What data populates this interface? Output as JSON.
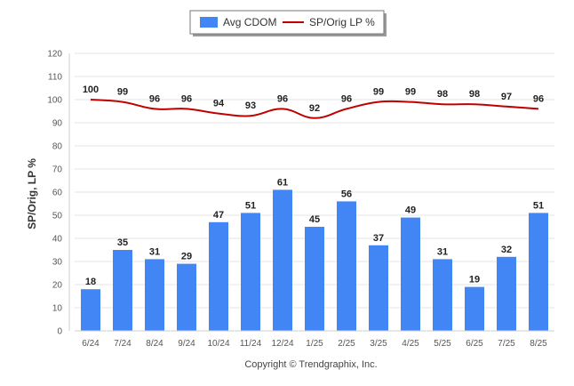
{
  "chart_data": {
    "type": "bar",
    "categories": [
      "6/24",
      "7/24",
      "8/24",
      "9/24",
      "10/24",
      "11/24",
      "12/24",
      "1/25",
      "2/25",
      "3/25",
      "4/25",
      "5/25",
      "6/25",
      "7/25",
      "8/25"
    ],
    "series": [
      {
        "name": "Avg CDOM",
        "type": "bar",
        "color": "#4285f4",
        "values": [
          18,
          35,
          31,
          29,
          47,
          51,
          61,
          45,
          56,
          37,
          49,
          31,
          19,
          32,
          51
        ]
      },
      {
        "name": "SP/Orig LP %",
        "type": "line",
        "color": "#c00000",
        "values": [
          100,
          99,
          96,
          96,
          94,
          93,
          96,
          92,
          96,
          99,
          99,
          98,
          98,
          97,
          96
        ]
      }
    ],
    "ylabel": "SP/Orig, LP %",
    "ylim": [
      0,
      120
    ],
    "yticks": [
      0,
      10,
      20,
      30,
      40,
      50,
      60,
      70,
      80,
      90,
      100,
      110,
      120
    ],
    "grid": true,
    "legend_position": "top-center",
    "footer": "Copyright © Trendgraphix, Inc."
  }
}
